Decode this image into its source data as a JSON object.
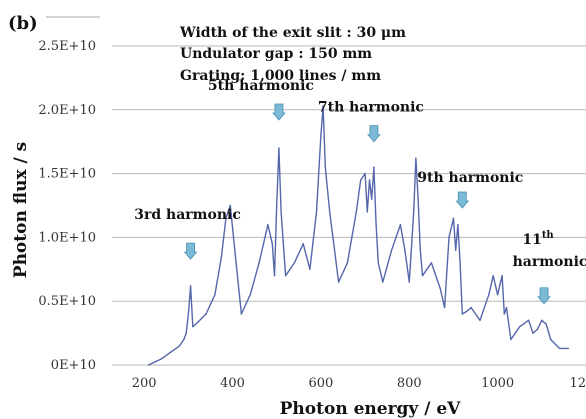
{
  "chart_data": {
    "type": "line",
    "panel_label": "(b)",
    "xlabel": "Photon energy / eV",
    "ylabel": "Photon flux / s",
    "xlim": [
      100,
      1200
    ],
    "ylim": [
      0,
      25000000000.0
    ],
    "x_ticks": [
      200,
      400,
      600,
      800,
      1000,
      1200
    ],
    "x_tick_labels": [
      "200",
      "400",
      "600",
      "800",
      "1000",
      "1200"
    ],
    "y_ticks": [
      0,
      5000000000.0,
      10000000000.0,
      15000000000.0,
      20000000000.0,
      25000000000.0
    ],
    "y_tick_labels": [
      "0E+10",
      "0.5E+10",
      "1.0E+10",
      "1.5E+10",
      "2.0E+10",
      "2.5E+10"
    ],
    "grid": "horizontal",
    "line_color": "#5566aa",
    "annotation_color": "#7cb9d6",
    "info_lines": [
      "Width of the exit slit : 30 μm",
      "Undulator gap : 150 mm",
      "Grating: 1,000 lines / mm"
    ],
    "annotations": [
      {
        "text": "3rd harmonic",
        "x": 305,
        "y_arrow": 8300000000.0
      },
      {
        "text": "5th harmonic",
        "x": 505,
        "y_arrow": 19200000000.0
      },
      {
        "text": "7th harmonic",
        "x": 720,
        "y_arrow": 17500000000.0
      },
      {
        "text": "9th harmonic",
        "x": 920,
        "y_arrow": 12300000000.0
      },
      {
        "text": "11",
        "sup": "th",
        "line2": "harmonic",
        "x": 1105,
        "y_arrow": 4800000000.0
      }
    ],
    "series": [
      {
        "x": [
          210,
          240,
          260,
          280,
          290,
          295,
          300,
          305,
          310,
          320,
          340,
          360,
          375,
          385,
          395,
          405,
          420,
          440,
          460,
          480,
          490,
          495,
          500,
          505,
          510,
          520,
          540,
          560,
          575,
          590,
          600,
          605,
          610,
          620,
          640,
          660,
          680,
          690,
          700,
          705,
          710,
          715,
          720,
          725,
          730,
          740,
          760,
          780,
          790,
          800,
          810,
          815,
          820,
          825,
          830,
          850,
          870,
          880,
          890,
          900,
          905,
          910,
          915,
          920,
          930,
          940,
          960,
          980,
          990,
          1000,
          1010,
          1015,
          1020,
          1030,
          1050,
          1070,
          1080,
          1090,
          1100,
          1110,
          1120,
          1140,
          1160
        ],
        "y": [
          0,
          500000000.0,
          1000000000.0,
          1500000000.0,
          2000000000.0,
          2500000000.0,
          4000000000.0,
          6200000000.0,
          3000000000.0,
          3300000000.0,
          4000000000.0,
          5500000000.0,
          8500000000.0,
          11500000000.0,
          12500000000.0,
          9000000000.0,
          4000000000.0,
          5500000000.0,
          8000000000.0,
          11000000000.0,
          9500000000.0,
          7000000000.0,
          12500000000.0,
          17000000000.0,
          12000000000.0,
          7000000000.0,
          8000000000.0,
          9500000000.0,
          7500000000.0,
          12000000000.0,
          18000000000.0,
          20300000000.0,
          15500000000.0,
          12000000000.0,
          6500000000.0,
          8000000000.0,
          12000000000.0,
          14500000000.0,
          15000000000.0,
          12000000000.0,
          14500000000.0,
          13000000000.0,
          15500000000.0,
          11000000000.0,
          8000000000.0,
          6500000000.0,
          9000000000.0,
          11000000000.0,
          9000000000.0,
          6500000000.0,
          12000000000.0,
          16200000000.0,
          13000000000.0,
          9000000000.0,
          7000000000.0,
          8000000000.0,
          6000000000.0,
          4500000000.0,
          10000000000.0,
          11500000000.0,
          9000000000.0,
          11000000000.0,
          8000000000.0,
          4000000000.0,
          4200000000.0,
          4500000000.0,
          3500000000.0,
          5500000000.0,
          7000000000.0,
          5500000000.0,
          7000000000.0,
          4000000000.0,
          4500000000.0,
          2000000000.0,
          3000000000.0,
          3500000000.0,
          2500000000.0,
          2800000000.0,
          3500000000.0,
          3200000000.0,
          2000000000.0,
          1300000000.0,
          1300000000.0
        ]
      }
    ]
  }
}
